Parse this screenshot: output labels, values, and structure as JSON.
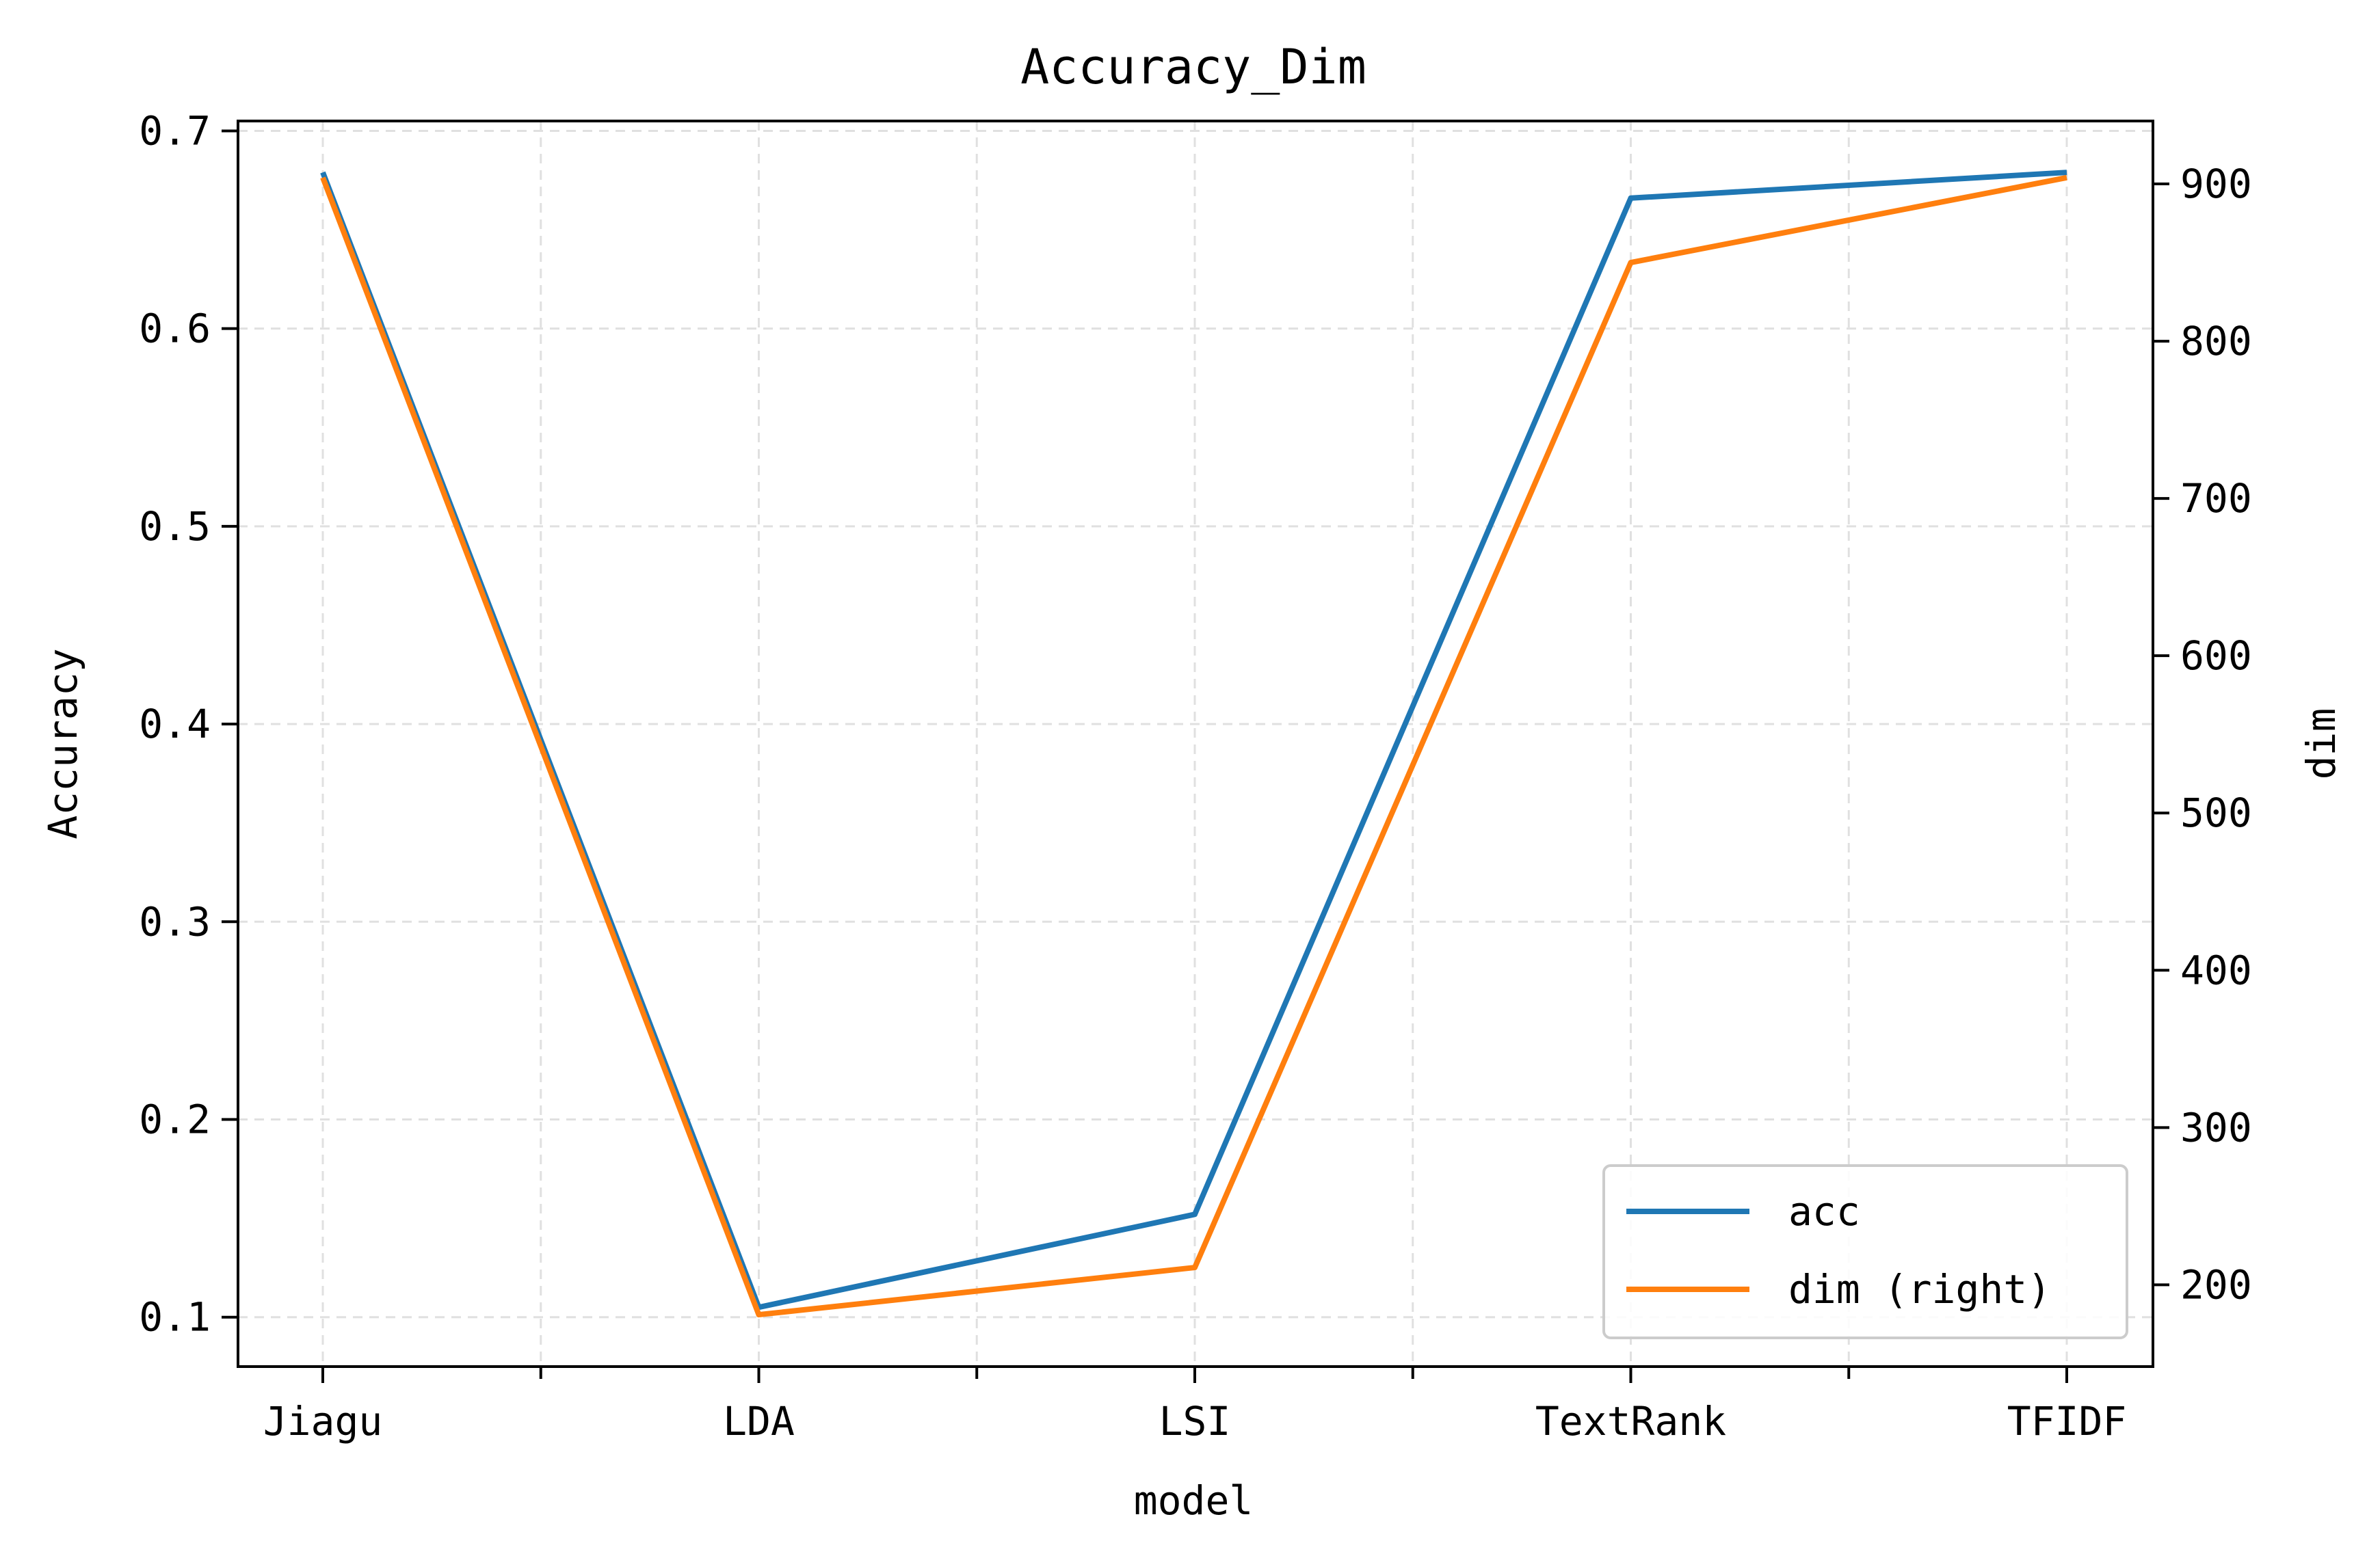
{
  "chart_data": {
    "type": "line",
    "title": "Accuracy_Dim",
    "xlabel": "model",
    "ylabel": "Accuracy",
    "y2label": "dim",
    "categories": [
      "Jiagu",
      "LDA",
      "LSI",
      "TextRank",
      "TFIDF"
    ],
    "ylim": [
      0.075,
      0.705
    ],
    "y2lim": [
      148,
      940
    ],
    "yticks": [
      "0.1",
      "0.2",
      "0.3",
      "0.4",
      "0.5",
      "0.6",
      "0.7"
    ],
    "y2ticks": [
      "200",
      "300",
      "400",
      "500",
      "600",
      "700",
      "800",
      "900"
    ],
    "grid": true,
    "legend_position": "lower-right",
    "series": [
      {
        "name": "acc",
        "axis": "left",
        "color": "#1f77b4",
        "values": [
          0.679,
          0.105,
          0.152,
          0.666,
          0.679
        ]
      },
      {
        "name": "dim (right)",
        "axis": "right",
        "color": "#ff7f0e",
        "values": [
          904,
          181,
          211,
          850,
          904
        ]
      }
    ]
  }
}
